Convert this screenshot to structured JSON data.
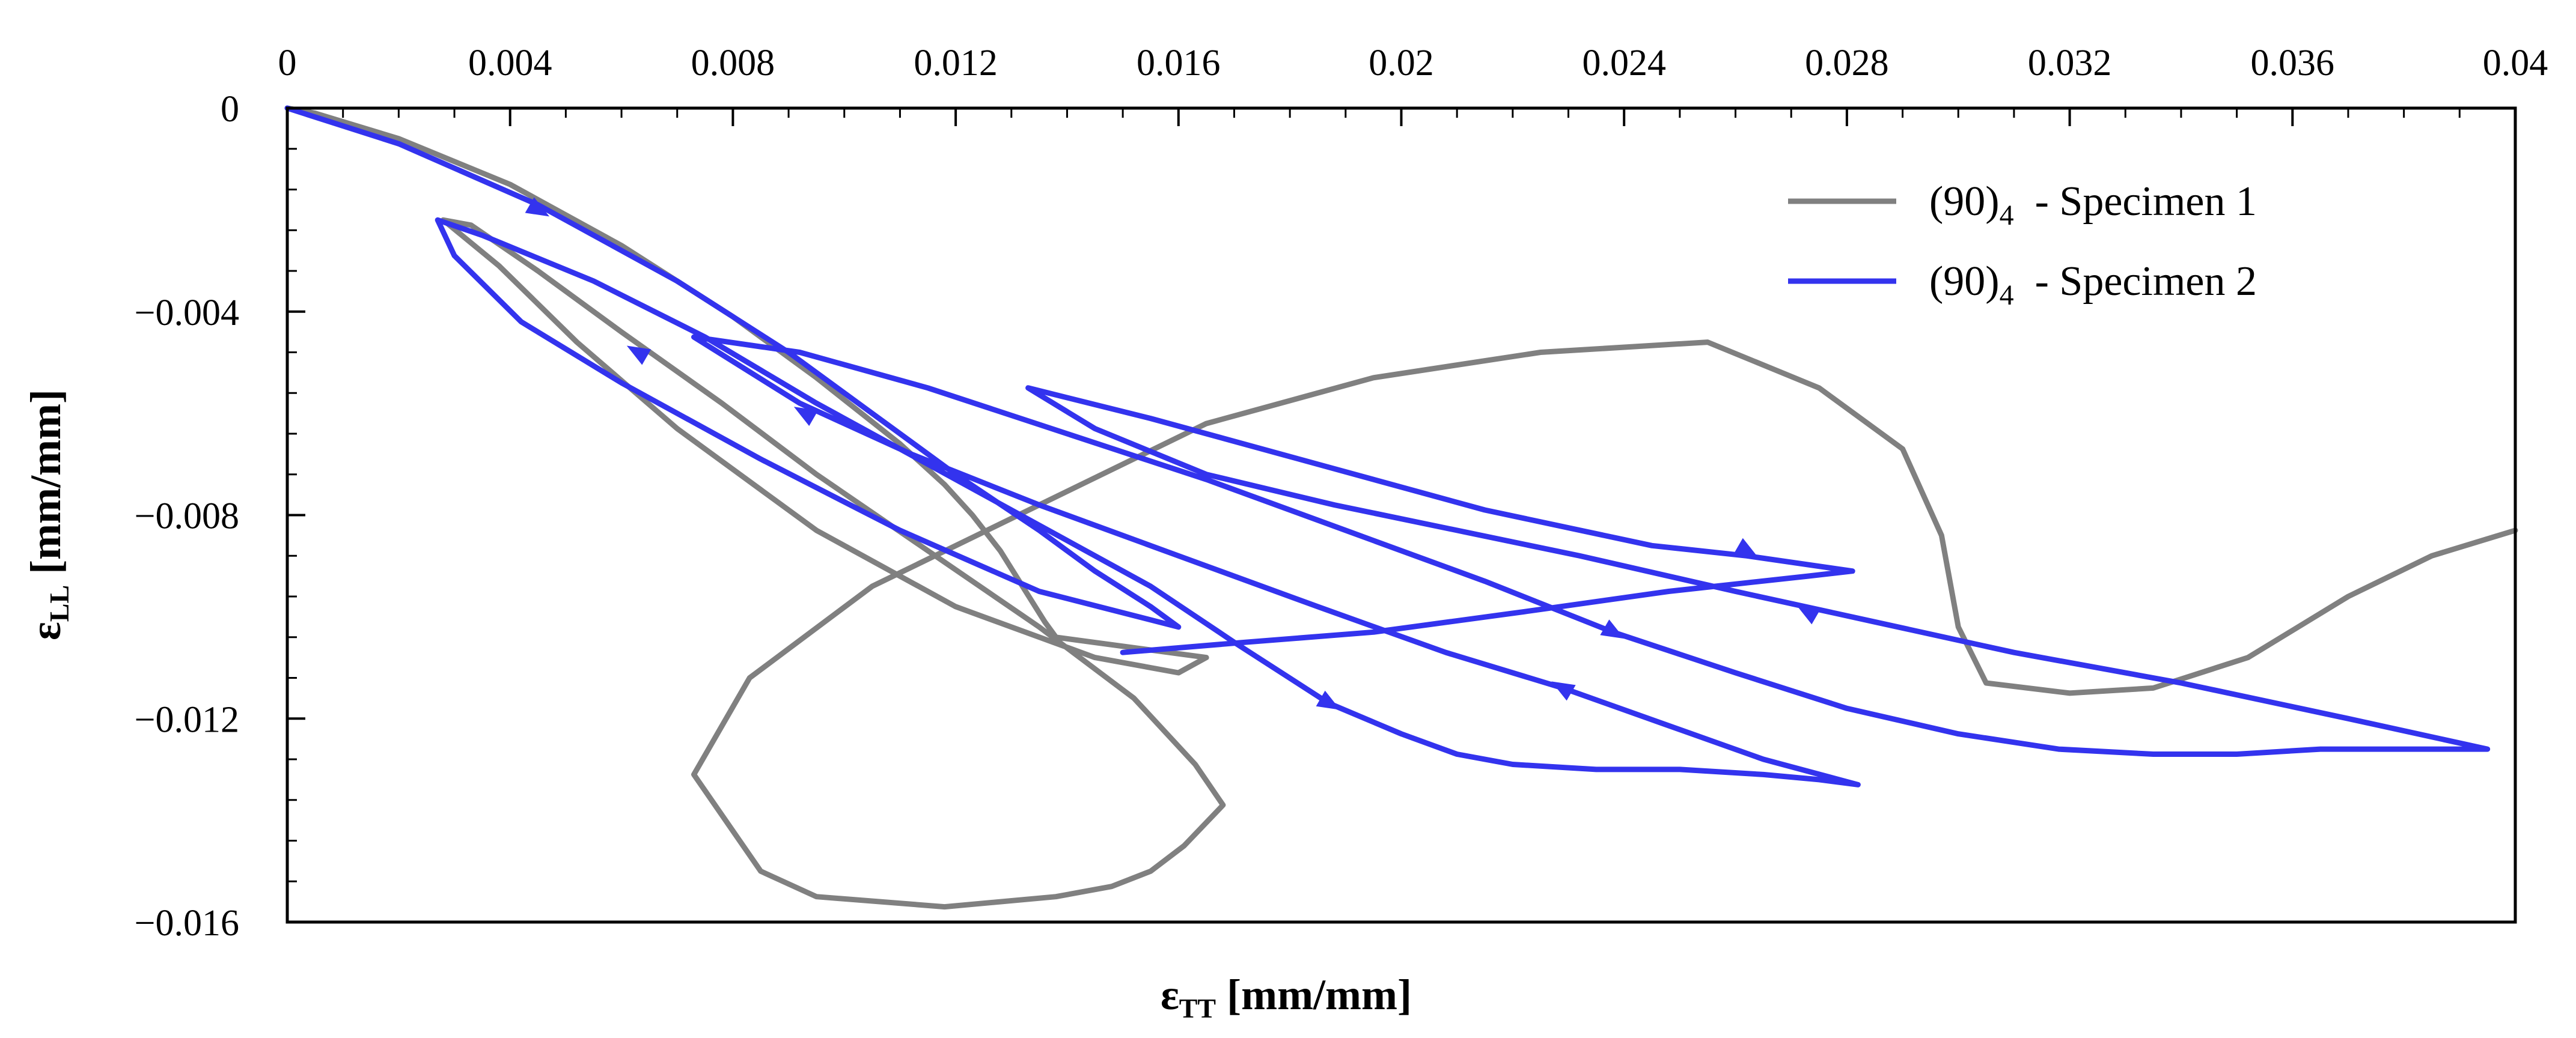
{
  "chart_data": {
    "type": "line",
    "xlabel": "εTT [mm/mm]",
    "ylabel": "εLL [mm/mm]",
    "xlabel_main": "ε",
    "xlabel_sub": "TT",
    "xlabel_unit": "[mm/mm]",
    "ylabel_main": "ε",
    "ylabel_sub": "LL",
    "ylabel_unit": "[mm/mm]",
    "xlim": [
      0,
      0.04
    ],
    "ylim": [
      -0.016,
      0
    ],
    "x_axis_position": "top",
    "x_ticks": [
      0,
      0.004,
      0.008,
      0.012,
      0.016,
      0.02,
      0.024,
      0.028,
      0.032,
      0.036,
      0.04
    ],
    "x_tick_labels": [
      "0",
      "0.004",
      "0.008",
      "0.012",
      "0.016",
      "0.02",
      "0.024",
      "0.028",
      "0.032",
      "0.036",
      "0.04"
    ],
    "y_ticks": [
      0,
      -0.004,
      -0.008,
      -0.012,
      -0.016
    ],
    "y_tick_labels": [
      "0",
      "−0.004",
      "−0.008",
      "−0.012",
      "−0.016"
    ],
    "legend_position": "top-right",
    "series": [
      {
        "name": "(90)4 - Specimen 1",
        "legend_main": "(90)",
        "legend_sub": "4",
        "legend_rest": "  - Specimen 1",
        "color": "#808080",
        "x": [
          0,
          0.0005,
          0.002,
          0.004,
          0.006,
          0.008,
          0.0095,
          0.011,
          0.0118,
          0.0123,
          0.0128,
          0.0132,
          0.0136,
          0.0138,
          0.0165,
          0.016,
          0.0145,
          0.012,
          0.0095,
          0.007,
          0.0052,
          0.0038,
          0.0028,
          0.0033,
          0.0045,
          0.006,
          0.0078,
          0.0095,
          0.0115,
          0.0135,
          0.0152,
          0.0163,
          0.0168,
          0.0161,
          0.0155,
          0.0148,
          0.0138,
          0.0118,
          0.0095,
          0.0085,
          0.0073,
          0.0083,
          0.0105,
          0.0135,
          0.0165,
          0.0195,
          0.0225,
          0.0255,
          0.0275,
          0.029,
          0.0297,
          0.03,
          0.0305,
          0.032,
          0.0335,
          0.0352,
          0.037,
          0.0385,
          0.04
        ],
        "y": [
          0,
          -0.0001,
          -0.0006,
          -0.0015,
          -0.0027,
          -0.0041,
          -0.0053,
          -0.0066,
          -0.0074,
          -0.008,
          -0.0087,
          -0.0094,
          -0.0101,
          -0.0104,
          -0.0108,
          -0.0111,
          -0.0108,
          -0.0098,
          -0.0083,
          -0.0063,
          -0.0046,
          -0.0031,
          -0.0022,
          -0.0023,
          -0.0032,
          -0.0044,
          -0.0058,
          -0.0072,
          -0.0087,
          -0.0102,
          -0.0116,
          -0.0129,
          -0.0137,
          -0.0145,
          -0.015,
          -0.0153,
          -0.0155,
          -0.0157,
          -0.0155,
          -0.015,
          -0.0131,
          -0.0112,
          -0.0094,
          -0.0078,
          -0.0062,
          -0.0053,
          -0.0048,
          -0.0046,
          -0.0055,
          -0.0067,
          -0.0084,
          -0.0102,
          -0.0113,
          -0.0115,
          -0.0114,
          -0.0108,
          -0.0096,
          -0.0088,
          -0.0083
        ]
      },
      {
        "name": "(90)4 - Specimen 2",
        "legend_main": "(90)",
        "legend_sub": "4",
        "legend_rest": "  - Specimen 2",
        "color": "#3333ee",
        "x": [
          0,
          0.002,
          0.0045,
          0.007,
          0.009,
          0.0105,
          0.012,
          0.0135,
          0.0145,
          0.0155,
          0.016,
          0.0135,
          0.011,
          0.0085,
          0.006,
          0.0042,
          0.003,
          0.0027,
          0.0035,
          0.0055,
          0.0075,
          0.0095,
          0.0115,
          0.0135,
          0.0155,
          0.017,
          0.0187,
          0.02,
          0.021,
          0.022,
          0.0235,
          0.025,
          0.0265,
          0.0275,
          0.0282,
          0.0265,
          0.0247,
          0.0229,
          0.0208,
          0.0185,
          0.016,
          0.0135,
          0.0112,
          0.0092,
          0.0073,
          0.0092,
          0.0115,
          0.014,
          0.0165,
          0.019,
          0.0215,
          0.0238,
          0.026,
          0.028,
          0.03,
          0.0318,
          0.0335,
          0.035,
          0.0365,
          0.0375,
          0.038,
          0.0395,
          0.037,
          0.034,
          0.031,
          0.0285,
          0.026,
          0.0232,
          0.021,
          0.0188,
          0.0165,
          0.0145,
          0.0133,
          0.0155,
          0.0185,
          0.0215,
          0.0245,
          0.0262,
          0.0281,
          0.0273,
          0.0248,
          0.0222,
          0.0195,
          0.0172,
          0.015
        ],
        "y": [
          0,
          -0.0007,
          -0.0019,
          -0.0034,
          -0.0048,
          -0.006,
          -0.0072,
          -0.0083,
          -0.0091,
          -0.0098,
          -0.0102,
          -0.0095,
          -0.0083,
          -0.0069,
          -0.0054,
          -0.0042,
          -0.0029,
          -0.0022,
          -0.0025,
          -0.0034,
          -0.0045,
          -0.0058,
          -0.007,
          -0.0082,
          -0.0094,
          -0.0105,
          -0.0117,
          -0.0123,
          -0.0127,
          -0.0129,
          -0.013,
          -0.013,
          -0.0131,
          -0.0132,
          -0.0133,
          -0.0128,
          -0.0121,
          -0.0114,
          -0.0107,
          -0.0098,
          -0.0088,
          -0.0078,
          -0.0068,
          -0.0058,
          -0.0045,
          -0.0048,
          -0.0055,
          -0.0064,
          -0.0073,
          -0.0083,
          -0.0093,
          -0.0103,
          -0.0111,
          -0.0118,
          -0.0123,
          -0.0126,
          -0.0127,
          -0.0127,
          -0.0126,
          -0.0126,
          -0.0126,
          -0.0126,
          -0.012,
          -0.0113,
          -0.0107,
          -0.0101,
          -0.0095,
          -0.0088,
          -0.0083,
          -0.0078,
          -0.0072,
          -0.0063,
          -0.0055,
          -0.0061,
          -0.007,
          -0.0079,
          -0.0086,
          -0.0088,
          -0.0091,
          -0.0092,
          -0.0095,
          -0.0099,
          -0.0103,
          -0.0105,
          -0.0107
        ]
      }
    ],
    "arrows": [
      {
        "series": 1,
        "x": 0.0045,
        "y": -0.002,
        "direction": "down-right"
      },
      {
        "series": 1,
        "x": 0.0063,
        "y": -0.0048,
        "direction": "up-left"
      },
      {
        "series": 1,
        "x": 0.0093,
        "y": -0.006,
        "direction": "up-left"
      },
      {
        "series": 1,
        "x": 0.0187,
        "y": -0.0117,
        "direction": "down-right"
      },
      {
        "series": 1,
        "x": 0.0229,
        "y": -0.0114,
        "direction": "up-left"
      },
      {
        "series": 1,
        "x": 0.0238,
        "y": -0.0103,
        "direction": "down-right"
      },
      {
        "series": 1,
        "x": 0.0262,
        "y": -0.0087,
        "direction": "down-right"
      },
      {
        "series": 1,
        "x": 0.0273,
        "y": -0.0099,
        "direction": "up-left"
      }
    ]
  }
}
